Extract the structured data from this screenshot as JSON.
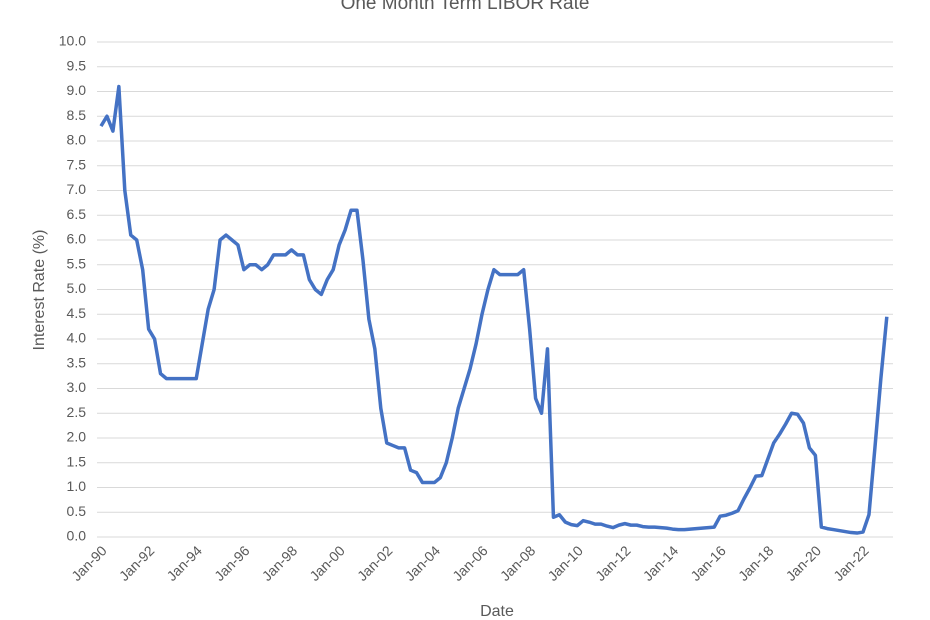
{
  "chart_data": {
    "type": "line",
    "title": "One Month Term LIBOR Rate",
    "xlabel": "Date",
    "ylabel": "Interest Rate  (%)",
    "categories": [
      "Jan-90",
      "Apr-90",
      "Jul-90",
      "Oct-90",
      "Jan-91",
      "Apr-91",
      "Jul-91",
      "Oct-91",
      "Jan-92",
      "Apr-92",
      "Jul-92",
      "Oct-92",
      "Jan-93",
      "Apr-93",
      "Jul-93",
      "Oct-93",
      "Jan-94",
      "Apr-94",
      "Jul-94",
      "Oct-94",
      "Jan-95",
      "Apr-95",
      "Jul-95",
      "Oct-95",
      "Jan-96",
      "Apr-96",
      "Jul-96",
      "Oct-96",
      "Jan-97",
      "Apr-97",
      "Jul-97",
      "Oct-97",
      "Jan-98",
      "Apr-98",
      "Jul-98",
      "Oct-98",
      "Jan-99",
      "Apr-99",
      "Jul-99",
      "Oct-99",
      "Jan-00",
      "Apr-00",
      "Jul-00",
      "Oct-00",
      "Jan-01",
      "Apr-01",
      "Jul-01",
      "Oct-01",
      "Jan-02",
      "Apr-02",
      "Jul-02",
      "Oct-02",
      "Jan-03",
      "Apr-03",
      "Jul-03",
      "Oct-03",
      "Jan-04",
      "Apr-04",
      "Jul-04",
      "Oct-04",
      "Jan-05",
      "Apr-05",
      "Jul-05",
      "Oct-05",
      "Jan-06",
      "Apr-06",
      "Jul-06",
      "Oct-06",
      "Jan-07",
      "Apr-07",
      "Jul-07",
      "Oct-07",
      "Jan-08",
      "Apr-08",
      "Jul-08",
      "Oct-08",
      "Jan-09",
      "Apr-09",
      "Jul-09",
      "Oct-09",
      "Jan-10",
      "Apr-10",
      "Jul-10",
      "Oct-10",
      "Jan-11",
      "Apr-11",
      "Jul-11",
      "Oct-11",
      "Jan-12",
      "Apr-12",
      "Jul-12",
      "Oct-12",
      "Jan-13",
      "Apr-13",
      "Jul-13",
      "Oct-13",
      "Jan-14",
      "Apr-14",
      "Jul-14",
      "Oct-14",
      "Jan-15",
      "Apr-15",
      "Jul-15",
      "Oct-15",
      "Jan-16",
      "Apr-16",
      "Jul-16",
      "Oct-16",
      "Jan-17",
      "Apr-17",
      "Jul-17",
      "Oct-17",
      "Jan-18",
      "Apr-18",
      "Jul-18",
      "Oct-18",
      "Jan-19",
      "Apr-19",
      "Jul-19",
      "Oct-19",
      "Jan-20",
      "Apr-20",
      "Jul-20",
      "Oct-20",
      "Jan-21",
      "Apr-21",
      "Jul-21",
      "Oct-21",
      "Jan-22",
      "Apr-22",
      "Jul-22",
      "Oct-22",
      "Jan-23"
    ],
    "values": [
      8.3,
      8.5,
      8.2,
      9.1,
      7.0,
      6.1,
      6.0,
      5.4,
      4.2,
      4.0,
      3.3,
      3.2,
      3.2,
      3.2,
      3.2,
      3.2,
      3.2,
      3.9,
      4.6,
      5.0,
      6.0,
      6.1,
      6.0,
      5.9,
      5.4,
      5.5,
      5.5,
      5.4,
      5.5,
      5.7,
      5.7,
      5.7,
      5.8,
      5.7,
      5.7,
      5.2,
      5.0,
      4.9,
      5.2,
      5.4,
      5.9,
      6.2,
      6.6,
      6.6,
      5.6,
      4.4,
      3.8,
      2.6,
      1.9,
      1.85,
      1.8,
      1.8,
      1.35,
      1.3,
      1.1,
      1.1,
      1.1,
      1.2,
      1.5,
      2.0,
      2.6,
      3.0,
      3.4,
      3.9,
      4.5,
      5.0,
      5.4,
      5.3,
      5.3,
      5.3,
      5.3,
      5.4,
      4.2,
      2.8,
      2.5,
      3.8,
      0.4,
      0.45,
      0.3,
      0.25,
      0.23,
      0.33,
      0.3,
      0.26,
      0.26,
      0.22,
      0.19,
      0.24,
      0.27,
      0.24,
      0.24,
      0.21,
      0.2,
      0.2,
      0.19,
      0.18,
      0.16,
      0.15,
      0.15,
      0.16,
      0.17,
      0.18,
      0.19,
      0.2,
      0.42,
      0.44,
      0.48,
      0.53,
      0.77,
      0.99,
      1.23,
      1.24,
      1.57,
      1.9,
      2.08,
      2.28,
      2.5,
      2.48,
      2.3,
      1.8,
      1.65,
      0.2,
      0.17,
      0.15,
      0.13,
      0.11,
      0.09,
      0.08,
      0.1,
      0.45,
      1.8,
      3.2,
      4.45
    ],
    "color": "#4472c4",
    "xticks": [
      "Jan-90",
      "Jan-92",
      "Jan-94",
      "Jan-96",
      "Jan-98",
      "Jan-00",
      "Jan-02",
      "Jan-04",
      "Jan-06",
      "Jan-08",
      "Jan-10",
      "Jan-12",
      "Jan-14",
      "Jan-16",
      "Jan-18",
      "Jan-20",
      "Jan-22"
    ],
    "ylim": [
      0,
      10
    ],
    "yticks": [
      {
        "value": 0,
        "label": "0.0"
      },
      {
        "value": 0.5,
        "label": "0.5"
      },
      {
        "value": 1,
        "label": "1.0"
      },
      {
        "value": 1.5,
        "label": "1.5"
      },
      {
        "value": 2,
        "label": "2.0"
      },
      {
        "value": 2.5,
        "label": "2.5"
      },
      {
        "value": 3,
        "label": "3.0"
      },
      {
        "value": 3.5,
        "label": "3.5"
      },
      {
        "value": 4,
        "label": "4.0"
      },
      {
        "value": 4.5,
        "label": "4.5"
      },
      {
        "value": 5,
        "label": "5.0"
      },
      {
        "value": 5.5,
        "label": "5.5"
      },
      {
        "value": 6,
        "label": "6.0"
      },
      {
        "value": 6.5,
        "label": "6.5"
      },
      {
        "value": 7,
        "label": "7.0"
      },
      {
        "value": 7.5,
        "label": "7.5"
      },
      {
        "value": 8,
        "label": "8.0"
      },
      {
        "value": 8.5,
        "label": "8.5"
      },
      {
        "value": 9,
        "label": "9.0"
      },
      {
        "value": 9.5,
        "label": "9.5"
      },
      {
        "value": 10,
        "label": "10.0"
      }
    ],
    "grid": true
  }
}
